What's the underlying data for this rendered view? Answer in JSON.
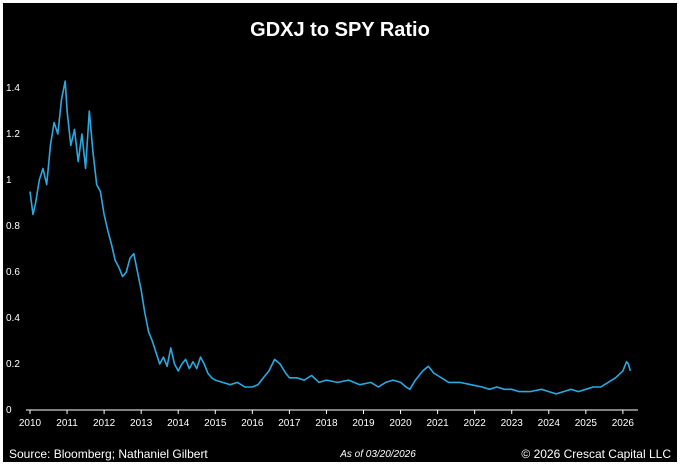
{
  "chart_data": {
    "type": "line",
    "title": "GDXJ to SPY Ratio",
    "xlabel": "",
    "ylabel": "",
    "xlim": [
      2010,
      2026.3
    ],
    "ylim": [
      0,
      1.5
    ],
    "grid": false,
    "line_color": "#29a9e1",
    "x_ticks": [
      "2010",
      "2011",
      "2012",
      "2013",
      "2014",
      "2015",
      "2016",
      "2017",
      "2018",
      "2019",
      "2020",
      "2021",
      "2022",
      "2023",
      "2024",
      "2025",
      "2026"
    ],
    "y_ticks": [
      "0",
      "0.2",
      "0.4",
      "0.6",
      "0.8",
      "1",
      "1.2",
      "1.4"
    ],
    "series": [
      {
        "name": "",
        "x": [
          2010.0,
          2010.08,
          2010.15,
          2010.25,
          2010.35,
          2010.45,
          2010.55,
          2010.65,
          2010.75,
          2010.85,
          2010.95,
          2011.0,
          2011.1,
          2011.2,
          2011.3,
          2011.4,
          2011.5,
          2011.6,
          2011.7,
          2011.8,
          2011.9,
          2012.0,
          2012.1,
          2012.2,
          2012.3,
          2012.4,
          2012.5,
          2012.6,
          2012.7,
          2012.8,
          2012.9,
          2013.0,
          2013.1,
          2013.2,
          2013.3,
          2013.4,
          2013.5,
          2013.6,
          2013.7,
          2013.8,
          2013.9,
          2014.0,
          2014.1,
          2014.2,
          2014.3,
          2014.4,
          2014.5,
          2014.6,
          2014.7,
          2014.8,
          2014.9,
          2015.0,
          2015.2,
          2015.4,
          2015.6,
          2015.8,
          2016.0,
          2016.15,
          2016.3,
          2016.45,
          2016.6,
          2016.75,
          2016.9,
          2017.0,
          2017.2,
          2017.4,
          2017.6,
          2017.8,
          2018.0,
          2018.3,
          2018.6,
          2018.9,
          2019.2,
          2019.4,
          2019.6,
          2019.8,
          2020.0,
          2020.15,
          2020.25,
          2020.4,
          2020.6,
          2020.75,
          2020.9,
          2021.0,
          2021.3,
          2021.6,
          2021.9,
          2022.2,
          2022.4,
          2022.6,
          2022.8,
          2023.0,
          2023.2,
          2023.5,
          2023.8,
          2024.0,
          2024.2,
          2024.4,
          2024.6,
          2024.8,
          2025.0,
          2025.2,
          2025.4,
          2025.6,
          2025.8,
          2026.0,
          2026.05,
          2026.1,
          2026.15,
          2026.2
        ],
        "values": [
          0.95,
          0.85,
          0.9,
          1.0,
          1.05,
          0.98,
          1.15,
          1.25,
          1.2,
          1.35,
          1.43,
          1.3,
          1.15,
          1.22,
          1.08,
          1.2,
          1.05,
          1.3,
          1.12,
          0.98,
          0.95,
          0.85,
          0.78,
          0.72,
          0.65,
          0.62,
          0.58,
          0.6,
          0.66,
          0.68,
          0.6,
          0.52,
          0.42,
          0.34,
          0.3,
          0.25,
          0.2,
          0.23,
          0.19,
          0.27,
          0.2,
          0.17,
          0.2,
          0.22,
          0.18,
          0.21,
          0.18,
          0.23,
          0.2,
          0.16,
          0.14,
          0.13,
          0.12,
          0.11,
          0.12,
          0.1,
          0.1,
          0.11,
          0.14,
          0.17,
          0.22,
          0.2,
          0.16,
          0.14,
          0.14,
          0.13,
          0.15,
          0.12,
          0.13,
          0.12,
          0.13,
          0.11,
          0.12,
          0.1,
          0.12,
          0.13,
          0.12,
          0.1,
          0.09,
          0.13,
          0.17,
          0.19,
          0.16,
          0.15,
          0.12,
          0.12,
          0.11,
          0.1,
          0.09,
          0.1,
          0.09,
          0.09,
          0.08,
          0.08,
          0.09,
          0.08,
          0.07,
          0.08,
          0.09,
          0.08,
          0.09,
          0.1,
          0.1,
          0.12,
          0.14,
          0.17,
          0.19,
          0.21,
          0.2,
          0.17
        ]
      }
    ]
  },
  "footer": {
    "source": "Source: Bloomberg; Nathaniel Gilbert",
    "as_of": "As of 03/20/2026",
    "copyright": "© 2026 Crescat Capital LLC"
  }
}
